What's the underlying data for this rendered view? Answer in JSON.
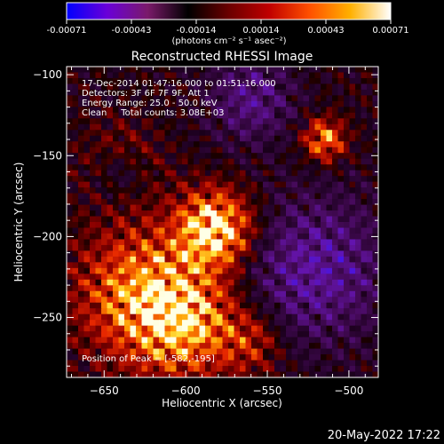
{
  "colorbar": {
    "ticks": [
      "-0.00071",
      "-0.00043",
      "-0.00014",
      "0.00014",
      "0.00043",
      "0.00071"
    ],
    "units": "(photons cm⁻² s⁻¹ asec⁻²)",
    "colors": [
      "#0000ff",
      "#6a00d8",
      "#7a1a6a",
      "#000000",
      "#6a0000",
      "#c00000",
      "#ff5000",
      "#ffb000",
      "#ffffff"
    ]
  },
  "title": "Reconstructed RHESSI Image",
  "annotations": {
    "line1": "17-Dec-2014 01:47:16.000 to 01:51:16.000",
    "line2": "Detectors: 3F 6F 7F 9F, Att 1",
    "line3": "Energy Range: 25.0 - 50.0 keV",
    "line4": "Clean     Total counts: 3.08E+03",
    "peak": "Position of Peak = [-582,-195]"
  },
  "timestamp": "20-May-2022 17:22",
  "chart_data": {
    "type": "heatmap",
    "title": "Reconstructed RHESSI Image",
    "xlabel": "Heliocentric X (arcsec)",
    "ylabel": "Heliocentric Y (arcsec)",
    "xlim": [
      -673,
      -482
    ],
    "ylim": [
      -287,
      -95
    ],
    "x_ticks": [
      -650,
      -600,
      -550,
      -500
    ],
    "y_ticks": [
      -100,
      -150,
      -200,
      -250
    ],
    "colorbar_range": [
      -0.00071,
      0.00071
    ],
    "sources": [
      {
        "x": -582,
        "y": -195,
        "amplitude": 1.0,
        "sigma": 16
      },
      {
        "x": -625,
        "y": -235,
        "amplitude": 0.75,
        "sigma": 28
      },
      {
        "x": -600,
        "y": -255,
        "amplitude": 0.6,
        "sigma": 22
      },
      {
        "x": -515,
        "y": -140,
        "amplitude": 0.7,
        "sigma": 9
      },
      {
        "x": -640,
        "y": -155,
        "amplitude": 0.35,
        "sigma": 16
      },
      {
        "x": -560,
        "y": -265,
        "amplitude": 0.35,
        "sigma": 14
      }
    ],
    "negative_regions": [
      {
        "x": -520,
        "y": -220,
        "amplitude": -0.55,
        "sigma": 30
      },
      {
        "x": -560,
        "y": -115,
        "amplitude": -0.45,
        "sigma": 18
      },
      {
        "x": -640,
        "y": -160,
        "amplitude": -0.4,
        "sigma": 12
      }
    ],
    "peak": [
      -582,
      -195
    ]
  }
}
